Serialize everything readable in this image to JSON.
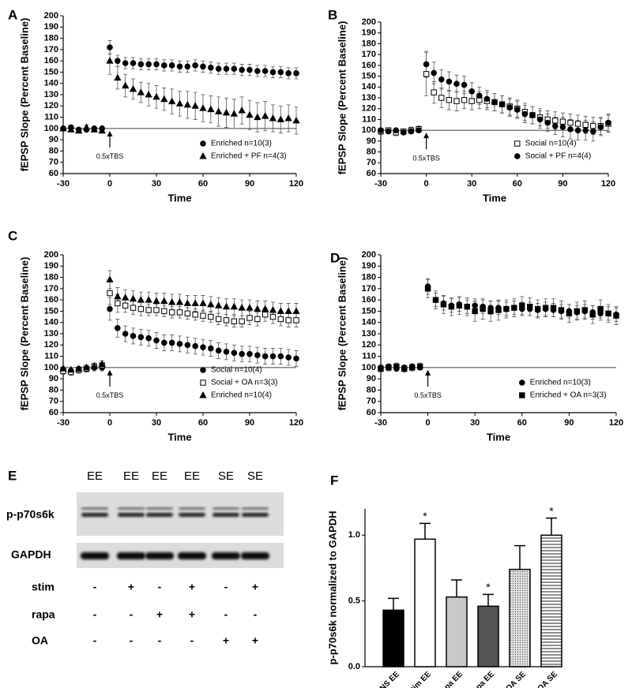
{
  "chart_data": [
    {
      "type": "line",
      "panel": "A",
      "ylabel": "fEPSP Slope (Percent Baseline)",
      "xlabel": "Time",
      "xlim": [
        -30,
        120
      ],
      "xticks": [
        -30,
        0,
        30,
        60,
        90,
        120
      ],
      "ylim": [
        60,
        200
      ],
      "yticks": [
        60,
        70,
        80,
        90,
        100,
        110,
        120,
        130,
        140,
        150,
        160,
        170,
        180,
        190,
        200
      ],
      "reference_line": 100,
      "annotations": [
        {
          "text": "0.5xTBS",
          "x": 0
        }
      ],
      "legend": "lower right",
      "x": [
        -30,
        -25,
        -20,
        -15,
        -10,
        -5,
        0,
        5,
        10,
        15,
        20,
        25,
        30,
        35,
        40,
        45,
        50,
        55,
        60,
        65,
        70,
        75,
        80,
        85,
        90,
        95,
        100,
        105,
        110,
        115,
        120
      ],
      "series": [
        {
          "name": "Enriched n=10(3)",
          "color": "#000000",
          "marker": "circle",
          "filled": true,
          "values": [
            100,
            101,
            99,
            99,
            100,
            100,
            172,
            160,
            158,
            158,
            157,
            157,
            157,
            156,
            156,
            155,
            155,
            156,
            155,
            154,
            153,
            153,
            153,
            152,
            152,
            151,
            151,
            150,
            150,
            149,
            149
          ],
          "errors": [
            1,
            2,
            1,
            2,
            1,
            2,
            6,
            5,
            5,
            5,
            5,
            5,
            5,
            5,
            5,
            5,
            5,
            5,
            5,
            5,
            5,
            5,
            5,
            5,
            5,
            5,
            5,
            5,
            5,
            5,
            5
          ]
        },
        {
          "name": "Enriched + PF n=4(3)",
          "color": "#000000",
          "marker": "triangle",
          "filled": true,
          "values": [
            100,
            99,
            98,
            101,
            99,
            98,
            160,
            145,
            138,
            135,
            132,
            130,
            128,
            126,
            124,
            122,
            121,
            120,
            118,
            117,
            115,
            114,
            113,
            116,
            112,
            110,
            111,
            109,
            108,
            109,
            107
          ],
          "errors": [
            2,
            2,
            2,
            2,
            2,
            2,
            12,
            10,
            10,
            9,
            9,
            10,
            10,
            10,
            11,
            11,
            12,
            12,
            12,
            12,
            13,
            13,
            13,
            12,
            13,
            13,
            13,
            12,
            12,
            12,
            12
          ]
        }
      ]
    },
    {
      "type": "line",
      "panel": "B",
      "ylabel": "fEPSP Slope (Percent Baseline)",
      "xlabel": "Time",
      "xlim": [
        -30,
        120
      ],
      "xticks": [
        -30,
        0,
        30,
        60,
        90,
        120
      ],
      "ylim": [
        60,
        200
      ],
      "yticks": [
        60,
        70,
        80,
        90,
        100,
        110,
        120,
        130,
        140,
        150,
        160,
        170,
        180,
        190,
        200
      ],
      "reference_line": 100,
      "annotations": [
        {
          "text": "0.5xTBS",
          "x": 0
        }
      ],
      "legend": "lower right",
      "x": [
        -30,
        -25,
        -20,
        -15,
        -10,
        -5,
        0,
        5,
        10,
        15,
        20,
        25,
        30,
        35,
        40,
        45,
        50,
        55,
        60,
        65,
        70,
        75,
        80,
        85,
        90,
        95,
        100,
        105,
        110,
        115,
        120
      ],
      "series": [
        {
          "name": "Social n=10(4)",
          "color": "#000000",
          "marker": "square",
          "filled": false,
          "values": [
            99,
            100,
            98,
            99,
            100,
            101,
            152,
            135,
            130,
            128,
            127,
            128,
            127,
            128,
            127,
            126,
            124,
            122,
            120,
            117,
            114,
            112,
            110,
            109,
            108,
            107,
            106,
            105,
            104,
            104,
            106
          ],
          "errors": [
            3,
            2,
            3,
            2,
            3,
            3,
            20,
            10,
            9,
            9,
            9,
            8,
            8,
            8,
            8,
            8,
            8,
            8,
            8,
            8,
            8,
            8,
            8,
            8,
            8,
            8,
            8,
            8,
            8,
            8,
            8
          ]
        },
        {
          "name": "Social + PF n=4(4)",
          "color": "#000000",
          "marker": "circle",
          "filled": true,
          "values": [
            100,
            99,
            100,
            98,
            99,
            100,
            161,
            153,
            147,
            145,
            143,
            142,
            136,
            132,
            129,
            126,
            124,
            121,
            119,
            115,
            114,
            110,
            107,
            104,
            103,
            101,
            100,
            100,
            99,
            103,
            107
          ],
          "errors": [
            2,
            2,
            2,
            2,
            2,
            2,
            12,
            10,
            9,
            9,
            8,
            8,
            8,
            8,
            8,
            8,
            8,
            8,
            8,
            8,
            8,
            8,
            8,
            8,
            9,
            9,
            9,
            9,
            9,
            8,
            8
          ]
        }
      ]
    },
    {
      "type": "line",
      "panel": "C",
      "ylabel": "fEPSP Slope (Percent Baseline)",
      "xlabel": "Time",
      "xlim": [
        -30,
        120
      ],
      "xticks": [
        -30,
        0,
        30,
        60,
        90,
        120
      ],
      "ylim": [
        60,
        200
      ],
      "yticks": [
        60,
        70,
        80,
        90,
        100,
        110,
        120,
        130,
        140,
        150,
        160,
        170,
        180,
        190,
        200
      ],
      "reference_line": 100,
      "annotations": [
        {
          "text": "0.5xTBS",
          "x": 0
        }
      ],
      "legend": "lower right",
      "x": [
        -30,
        -25,
        -20,
        -15,
        -10,
        -5,
        0,
        5,
        10,
        15,
        20,
        25,
        30,
        35,
        40,
        45,
        50,
        55,
        60,
        65,
        70,
        75,
        80,
        85,
        90,
        95,
        100,
        105,
        110,
        115,
        120
      ],
      "series": [
        {
          "name": "Social n=10(4)",
          "color": "#000000",
          "marker": "circle",
          "filled": true,
          "values": [
            98,
            97,
            98,
            99,
            100,
            100,
            152,
            135,
            130,
            128,
            127,
            126,
            124,
            122,
            122,
            121,
            120,
            119,
            118,
            117,
            115,
            114,
            113,
            112,
            112,
            111,
            110,
            110,
            110,
            109,
            108
          ],
          "errors": [
            3,
            3,
            3,
            3,
            3,
            3,
            10,
            8,
            7,
            7,
            7,
            7,
            7,
            7,
            7,
            7,
            7,
            7,
            7,
            7,
            7,
            7,
            7,
            7,
            7,
            7,
            7,
            7,
            7,
            7,
            7
          ]
        },
        {
          "name": "Social + OA  n=3(3)",
          "color": "#000000",
          "marker": "square",
          "filled": false,
          "values": [
            97,
            96,
            98,
            99,
            101,
            102,
            166,
            157,
            155,
            153,
            152,
            151,
            151,
            150,
            149,
            149,
            148,
            147,
            146,
            145,
            143,
            142,
            141,
            141,
            144,
            143,
            147,
            145,
            143,
            142,
            142
          ],
          "errors": [
            3,
            3,
            3,
            3,
            3,
            4,
            10,
            8,
            6,
            6,
            6,
            5,
            5,
            5,
            5,
            5,
            5,
            5,
            5,
            5,
            5,
            5,
            5,
            5,
            6,
            6,
            6,
            6,
            6,
            6,
            6
          ]
        },
        {
          "name": "Enriched n=10(4)",
          "color": "#000000",
          "marker": "triangle",
          "filled": true,
          "values": [
            99,
            98,
            99,
            100,
            101,
            103,
            178,
            163,
            162,
            161,
            160,
            160,
            159,
            159,
            158,
            158,
            157,
            157,
            157,
            156,
            155,
            154,
            154,
            153,
            153,
            152,
            152,
            151,
            150,
            150,
            150
          ],
          "errors": [
            2,
            2,
            2,
            2,
            3,
            3,
            8,
            8,
            7,
            7,
            7,
            7,
            7,
            7,
            7,
            7,
            7,
            7,
            7,
            7,
            7,
            7,
            7,
            7,
            7,
            7,
            7,
            7,
            7,
            7,
            7
          ]
        }
      ]
    },
    {
      "type": "line",
      "panel": "D",
      "ylabel": "fEPSP Slope (Percent Baseline)",
      "xlabel": "Time",
      "xlim": [
        -30,
        120
      ],
      "xticks": [
        -30,
        0,
        30,
        60,
        90,
        120
      ],
      "ylim": [
        60,
        200
      ],
      "yticks": [
        60,
        70,
        80,
        90,
        100,
        110,
        120,
        130,
        140,
        150,
        160,
        170,
        180,
        190,
        200
      ],
      "reference_line": 100,
      "annotations": [
        {
          "text": "0.5xTBS",
          "x": 0
        }
      ],
      "legend": "lower right",
      "x": [
        -30,
        -25,
        -20,
        -15,
        -10,
        -5,
        0,
        5,
        10,
        15,
        20,
        25,
        30,
        35,
        40,
        45,
        50,
        55,
        60,
        65,
        70,
        75,
        80,
        85,
        90,
        95,
        100,
        105,
        110,
        115,
        120
      ],
      "series": [
        {
          "name": "Enriched n=10(3)",
          "color": "#000000",
          "marker": "circle",
          "filled": true,
          "values": [
            100,
            101,
            99,
            100,
            101,
            100,
            172,
            160,
            157,
            155,
            156,
            154,
            155,
            154,
            153,
            153,
            152,
            153,
            152,
            152,
            151,
            152,
            151,
            150,
            150,
            149,
            150,
            149,
            148,
            148,
            147
          ],
          "errors": [
            2,
            2,
            2,
            2,
            2,
            2,
            7,
            6,
            6,
            6,
            6,
            6,
            6,
            6,
            6,
            6,
            6,
            6,
            6,
            6,
            6,
            6,
            6,
            6,
            6,
            6,
            6,
            6,
            6,
            6,
            6
          ]
        },
        {
          "name": "Enriched + OA n=3(3)",
          "color": "#000000",
          "marker": "square",
          "filled": true,
          "values": [
            99,
            100,
            101,
            99,
            100,
            101,
            170,
            160,
            156,
            154,
            155,
            154,
            150,
            152,
            150,
            151,
            152,
            153,
            155,
            154,
            152,
            153,
            153,
            151,
            148,
            150,
            151,
            147,
            152,
            148,
            146
          ],
          "errors": [
            3,
            3,
            3,
            3,
            3,
            3,
            8,
            8,
            8,
            8,
            8,
            8,
            9,
            9,
            9,
            9,
            8,
            8,
            8,
            8,
            8,
            8,
            8,
            8,
            8,
            8,
            8,
            8,
            8,
            8,
            8
          ]
        }
      ]
    },
    {
      "type": "bar",
      "panel": "F",
      "ylabel": "p-p70s6k normalized to GAPDH",
      "categories": [
        "NS EE",
        "Stim EE",
        "NS Rapa EE",
        "Stim Rapa EE",
        "NS OA SE",
        "Stim OA SE"
      ],
      "values": [
        0.43,
        0.97,
        0.53,
        0.46,
        0.74,
        1.0
      ],
      "errors": [
        0.09,
        0.12,
        0.13,
        0.09,
        0.18,
        0.13
      ],
      "significance": [
        null,
        "*",
        null,
        "*",
        null,
        "*"
      ],
      "fills": [
        "#000000",
        "#ffffff",
        "#c8c8c8",
        "#555555",
        "dots",
        "stripes"
      ],
      "ylim": [
        0,
        1.2
      ],
      "yticks": [
        {
          "value": 0,
          "label": "0.0"
        },
        {
          "value": 0.5,
          "label": "0.5"
        },
        {
          "value": 1,
          "label": "1.0"
        }
      ]
    }
  ],
  "blot": {
    "panel": "E",
    "lanes": [
      "EE",
      "EE",
      "EE",
      "EE",
      "SE",
      "SE"
    ],
    "bands": [
      "p-p70s6k",
      "GAPDH"
    ],
    "conditions": [
      {
        "name": "stim",
        "signs": [
          "-",
          "+",
          "-",
          "+",
          "-",
          "+"
        ]
      },
      {
        "name": "rapa",
        "signs": [
          "-",
          "-",
          "+",
          "+",
          "-",
          "-"
        ]
      },
      {
        "name": "OA",
        "signs": [
          "-",
          "-",
          "-",
          "-",
          "+",
          "+"
        ]
      }
    ]
  }
}
